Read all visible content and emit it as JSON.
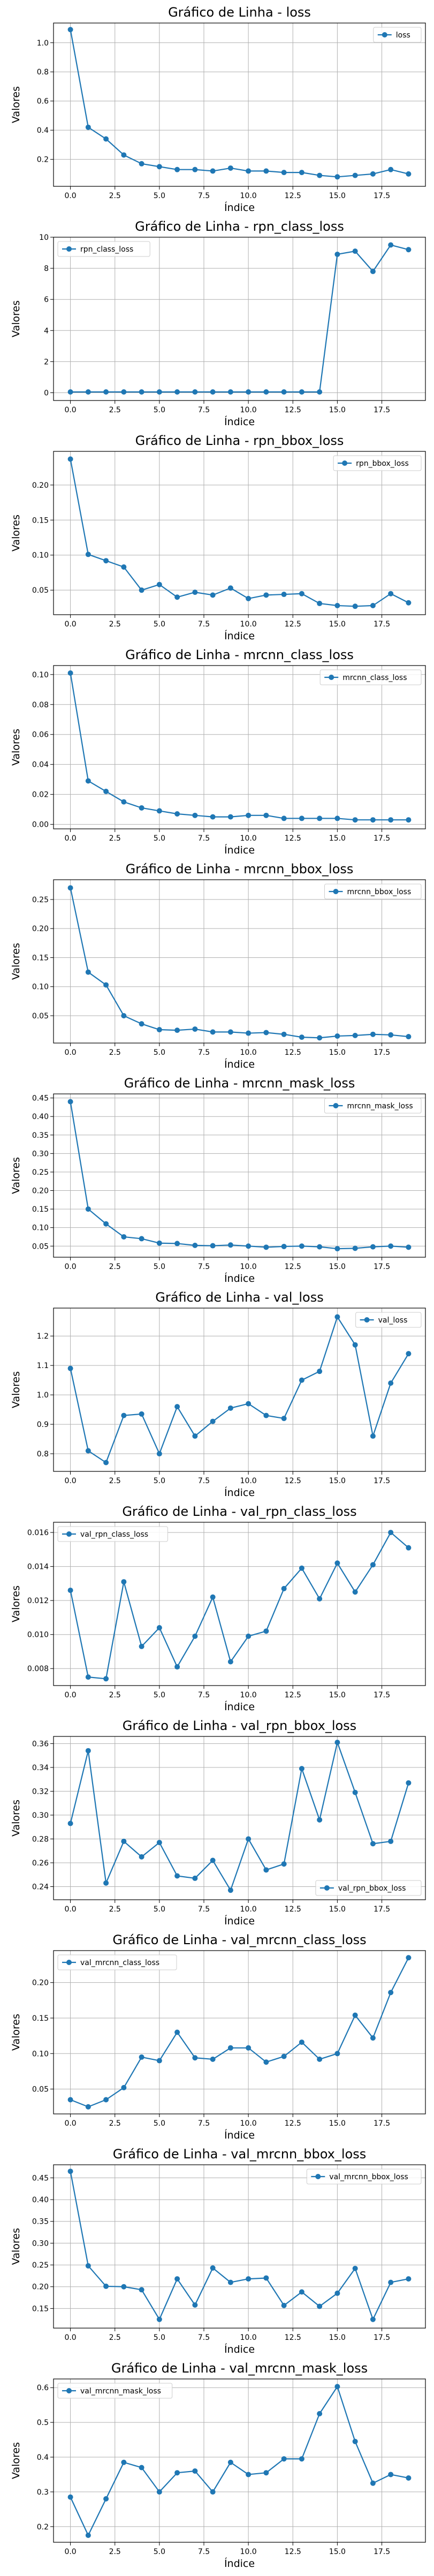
{
  "style": {
    "line_color": "#1f77b4",
    "grid_color": "#b0b0b0",
    "axes_color": "#000000",
    "legend_border": "#cccccc"
  },
  "chart_data": [
    {
      "type": "line",
      "title": "Gráfico de Linha - loss",
      "xlabel": "Índice",
      "ylabel": "Valores",
      "x": [
        0,
        1,
        2,
        3,
        4,
        5,
        6,
        7,
        8,
        9,
        10,
        11,
        12,
        13,
        14,
        15,
        16,
        17,
        18,
        19
      ],
      "xticks": [
        0.0,
        2.5,
        5.0,
        7.5,
        10.0,
        12.5,
        15.0,
        17.5
      ],
      "ylim": [
        0.015,
        1.135
      ],
      "yticks": [
        0.2,
        0.4,
        0.6,
        0.8,
        1.0
      ],
      "grid": true,
      "legend_position": "top-right",
      "series": [
        {
          "name": "loss",
          "values": [
            1.09,
            0.42,
            0.34,
            0.23,
            0.17,
            0.15,
            0.13,
            0.13,
            0.12,
            0.14,
            0.12,
            0.12,
            0.11,
            0.11,
            0.09,
            0.08,
            0.09,
            0.1,
            0.13,
            0.1
          ]
        }
      ]
    },
    {
      "type": "line",
      "title": "Gráfico de Linha - rpn_class_loss",
      "xlabel": "Índice",
      "ylabel": "Valores",
      "x": [
        0,
        1,
        2,
        3,
        4,
        5,
        6,
        7,
        8,
        9,
        10,
        11,
        12,
        13,
        14,
        15,
        16,
        17,
        18,
        19
      ],
      "xticks": [
        0.0,
        2.5,
        5.0,
        7.5,
        10.0,
        12.5,
        15.0,
        17.5
      ],
      "ylim": [
        -0.5,
        10.0
      ],
      "yticks": [
        0,
        2,
        4,
        6,
        8,
        10
      ],
      "grid": true,
      "legend_position": "top-left",
      "series": [
        {
          "name": "rpn_class_loss",
          "values": [
            0.05,
            0.05,
            0.05,
            0.05,
            0.05,
            0.05,
            0.05,
            0.05,
            0.05,
            0.05,
            0.05,
            0.05,
            0.05,
            0.05,
            0.05,
            8.9,
            9.1,
            7.8,
            9.5,
            9.2
          ]
        }
      ]
    },
    {
      "type": "line",
      "title": "Gráfico de Linha - rpn_bbox_loss",
      "xlabel": "Índice",
      "ylabel": "Valores",
      "x": [
        0,
        1,
        2,
        3,
        4,
        5,
        6,
        7,
        8,
        9,
        10,
        11,
        12,
        13,
        14,
        15,
        16,
        17,
        18,
        19
      ],
      "xticks": [
        0.0,
        2.5,
        5.0,
        7.5,
        10.0,
        12.5,
        15.0,
        17.5
      ],
      "ylim": [
        0.015,
        0.248
      ],
      "yticks": [
        0.05,
        0.1,
        0.15,
        0.2
      ],
      "grid": true,
      "legend_position": "top-right",
      "series": [
        {
          "name": "rpn_bbox_loss",
          "values": [
            0.237,
            0.101,
            0.092,
            0.083,
            0.05,
            0.058,
            0.04,
            0.047,
            0.043,
            0.053,
            0.038,
            0.043,
            0.044,
            0.045,
            0.031,
            0.028,
            0.027,
            0.028,
            0.045,
            0.032
          ]
        }
      ]
    },
    {
      "type": "line",
      "title": "Gráfico de Linha - mrcnn_class_loss",
      "xlabel": "Índice",
      "ylabel": "Valores",
      "x": [
        0,
        1,
        2,
        3,
        4,
        5,
        6,
        7,
        8,
        9,
        10,
        11,
        12,
        13,
        14,
        15,
        16,
        17,
        18,
        19
      ],
      "xticks": [
        0.0,
        2.5,
        5.0,
        7.5,
        10.0,
        12.5,
        15.0,
        17.5
      ],
      "ylim": [
        -0.003,
        0.106
      ],
      "yticks": [
        0.0,
        0.02,
        0.04,
        0.06,
        0.08,
        0.1
      ],
      "grid": true,
      "legend_position": "top-right",
      "series": [
        {
          "name": "mrcnn_class_loss",
          "values": [
            0.101,
            0.029,
            0.022,
            0.015,
            0.011,
            0.009,
            0.007,
            0.006,
            0.005,
            0.005,
            0.006,
            0.006,
            0.004,
            0.004,
            0.004,
            0.004,
            0.003,
            0.003,
            0.003,
            0.003
          ]
        }
      ]
    },
    {
      "type": "line",
      "title": "Gráfico de Linha - mrcnn_bbox_loss",
      "xlabel": "Índice",
      "ylabel": "Valores",
      "x": [
        0,
        1,
        2,
        3,
        4,
        5,
        6,
        7,
        8,
        9,
        10,
        11,
        12,
        13,
        14,
        15,
        16,
        17,
        18,
        19
      ],
      "xticks": [
        0.0,
        2.5,
        5.0,
        7.5,
        10.0,
        12.5,
        15.0,
        17.5
      ],
      "ylim": [
        0.003,
        0.284
      ],
      "yticks": [
        0.05,
        0.1,
        0.15,
        0.2,
        0.25
      ],
      "grid": true,
      "legend_position": "top-right",
      "series": [
        {
          "name": "mrcnn_bbox_loss",
          "values": [
            0.27,
            0.125,
            0.103,
            0.05,
            0.036,
            0.026,
            0.025,
            0.027,
            0.022,
            0.022,
            0.02,
            0.021,
            0.018,
            0.013,
            0.012,
            0.015,
            0.016,
            0.018,
            0.017,
            0.014
          ]
        }
      ]
    },
    {
      "type": "line",
      "title": "Gráfico de Linha - mrcnn_mask_loss",
      "xlabel": "Índice",
      "ylabel": "Valores",
      "x": [
        0,
        1,
        2,
        3,
        4,
        5,
        6,
        7,
        8,
        9,
        10,
        11,
        12,
        13,
        14,
        15,
        16,
        17,
        18,
        19
      ],
      "xticks": [
        0.0,
        2.5,
        5.0,
        7.5,
        10.0,
        12.5,
        15.0,
        17.5
      ],
      "ylim": [
        0.02,
        0.461
      ],
      "yticks": [
        0.05,
        0.1,
        0.15,
        0.2,
        0.25,
        0.3,
        0.35,
        0.4,
        0.45
      ],
      "grid": true,
      "legend_position": "top-right",
      "series": [
        {
          "name": "mrcnn_mask_loss",
          "values": [
            0.44,
            0.15,
            0.11,
            0.075,
            0.07,
            0.058,
            0.057,
            0.052,
            0.051,
            0.053,
            0.05,
            0.047,
            0.049,
            0.05,
            0.048,
            0.043,
            0.044,
            0.048,
            0.05,
            0.047
          ]
        }
      ]
    },
    {
      "type": "line",
      "title": "Gráfico de Linha - val_loss",
      "xlabel": "Índice",
      "ylabel": "Valores",
      "x": [
        0,
        1,
        2,
        3,
        4,
        5,
        6,
        7,
        8,
        9,
        10,
        11,
        12,
        13,
        14,
        15,
        16,
        17,
        18,
        19
      ],
      "xticks": [
        0.0,
        2.5,
        5.0,
        7.5,
        10.0,
        12.5,
        15.0,
        17.5
      ],
      "ylim": [
        0.74,
        1.295
      ],
      "yticks": [
        0.8,
        0.9,
        1.0,
        1.1,
        1.2
      ],
      "grid": true,
      "legend_position": "top-right",
      "series": [
        {
          "name": "val_loss",
          "values": [
            1.09,
            0.81,
            0.77,
            0.93,
            0.935,
            0.8,
            0.96,
            0.86,
            0.91,
            0.955,
            0.97,
            0.93,
            0.92,
            1.05,
            1.08,
            1.265,
            1.17,
            0.86,
            1.04,
            1.14
          ]
        }
      ]
    },
    {
      "type": "line",
      "title": "Gráfico de Linha - val_rpn_class_loss",
      "xlabel": "Índice",
      "ylabel": "Valores",
      "x": [
        0,
        1,
        2,
        3,
        4,
        5,
        6,
        7,
        8,
        9,
        10,
        11,
        12,
        13,
        14,
        15,
        16,
        17,
        18,
        19
      ],
      "xticks": [
        0.0,
        2.5,
        5.0,
        7.5,
        10.0,
        12.5,
        15.0,
        17.5
      ],
      "ylim": [
        0.007,
        0.0166
      ],
      "yticks": [
        0.008,
        0.01,
        0.012,
        0.014,
        0.016
      ],
      "grid": true,
      "legend_position": "top-left",
      "series": [
        {
          "name": "val_rpn_class_loss",
          "values": [
            0.0126,
            0.0075,
            0.0074,
            0.0131,
            0.0093,
            0.0104,
            0.0081,
            0.0099,
            0.0122,
            0.0084,
            0.0099,
            0.0102,
            0.0127,
            0.0139,
            0.0121,
            0.0142,
            0.0125,
            0.0141,
            0.016,
            0.0151
          ]
        }
      ]
    },
    {
      "type": "line",
      "title": "Gráfico de Linha - val_rpn_bbox_loss",
      "xlabel": "Índice",
      "ylabel": "Valores",
      "x": [
        0,
        1,
        2,
        3,
        4,
        5,
        6,
        7,
        8,
        9,
        10,
        11,
        12,
        13,
        14,
        15,
        16,
        17,
        18,
        19
      ],
      "xticks": [
        0.0,
        2.5,
        5.0,
        7.5,
        10.0,
        12.5,
        15.0,
        17.5
      ],
      "ylim": [
        0.229,
        0.366
      ],
      "yticks": [
        0.24,
        0.26,
        0.28,
        0.3,
        0.32,
        0.34,
        0.36
      ],
      "grid": true,
      "legend_position": "bottom-right",
      "series": [
        {
          "name": "val_rpn_bbox_loss",
          "values": [
            0.293,
            0.354,
            0.243,
            0.278,
            0.265,
            0.277,
            0.249,
            0.247,
            0.262,
            0.237,
            0.28,
            0.254,
            0.259,
            0.339,
            0.296,
            0.361,
            0.319,
            0.276,
            0.278,
            0.327
          ]
        }
      ]
    },
    {
      "type": "line",
      "title": "Gráfico de Linha - val_mrcnn_class_loss",
      "xlabel": "Índice",
      "ylabel": "Valores",
      "x": [
        0,
        1,
        2,
        3,
        4,
        5,
        6,
        7,
        8,
        9,
        10,
        11,
        12,
        13,
        14,
        15,
        16,
        17,
        18,
        19
      ],
      "xticks": [
        0.0,
        2.5,
        5.0,
        7.5,
        10.0,
        12.5,
        15.0,
        17.5
      ],
      "ylim": [
        0.015,
        0.245
      ],
      "yticks": [
        0.05,
        0.1,
        0.15,
        0.2
      ],
      "grid": true,
      "legend_position": "top-left",
      "series": [
        {
          "name": "val_mrcnn_class_loss",
          "values": [
            0.035,
            0.025,
            0.035,
            0.052,
            0.095,
            0.09,
            0.13,
            0.094,
            0.092,
            0.108,
            0.108,
            0.088,
            0.096,
            0.116,
            0.092,
            0.1,
            0.154,
            0.122,
            0.186,
            0.235
          ]
        }
      ]
    },
    {
      "type": "line",
      "title": "Gráfico de Linha - val_mrcnn_bbox_loss",
      "xlabel": "Índice",
      "ylabel": "Valores",
      "x": [
        0,
        1,
        2,
        3,
        4,
        5,
        6,
        7,
        8,
        9,
        10,
        11,
        12,
        13,
        14,
        15,
        16,
        17,
        18,
        19
      ],
      "xticks": [
        0.0,
        2.5,
        5.0,
        7.5,
        10.0,
        12.5,
        15.0,
        17.5
      ],
      "ylim": [
        0.105,
        0.48
      ],
      "yticks": [
        0.15,
        0.2,
        0.25,
        0.3,
        0.35,
        0.4,
        0.45
      ],
      "grid": true,
      "legend_position": "top-right",
      "series": [
        {
          "name": "val_mrcnn_bbox_loss",
          "values": [
            0.465,
            0.248,
            0.201,
            0.2,
            0.193,
            0.125,
            0.218,
            0.158,
            0.243,
            0.21,
            0.218,
            0.22,
            0.157,
            0.188,
            0.155,
            0.185,
            0.242,
            0.125,
            0.21,
            0.218
          ]
        }
      ]
    },
    {
      "type": "line",
      "title": "Gráfico de Linha - val_mrcnn_mask_loss",
      "xlabel": "Índice",
      "ylabel": "Valores",
      "x": [
        0,
        1,
        2,
        3,
        4,
        5,
        6,
        7,
        8,
        9,
        10,
        11,
        12,
        13,
        14,
        15,
        16,
        17,
        18,
        19
      ],
      "xticks": [
        0.0,
        2.5,
        5.0,
        7.5,
        10.0,
        12.5,
        15.0,
        17.5
      ],
      "ylim": [
        0.155,
        0.625
      ],
      "yticks": [
        0.2,
        0.3,
        0.4,
        0.5,
        0.6
      ],
      "grid": true,
      "legend_position": "top-left",
      "series": [
        {
          "name": "val_mrcnn_mask_loss",
          "values": [
            0.285,
            0.175,
            0.28,
            0.385,
            0.37,
            0.3,
            0.355,
            0.36,
            0.3,
            0.385,
            0.35,
            0.355,
            0.395,
            0.395,
            0.525,
            0.603,
            0.445,
            0.325,
            0.35,
            0.34
          ]
        }
      ]
    }
  ]
}
